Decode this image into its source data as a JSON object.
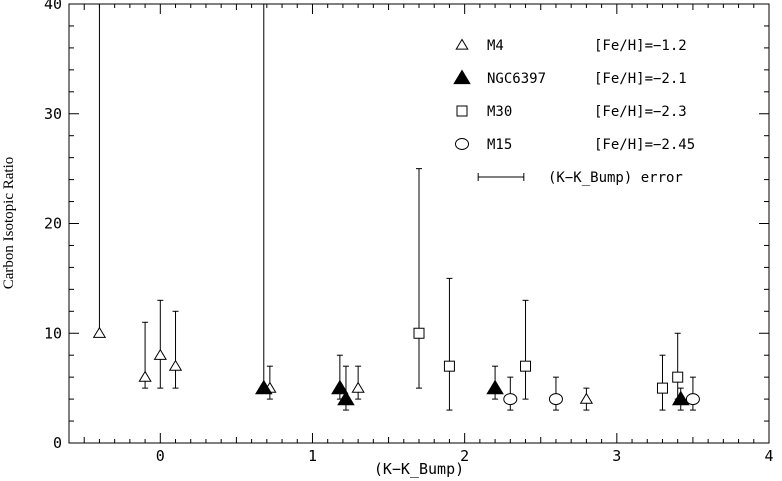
{
  "chart_data": {
    "type": "scatter",
    "xlabel": "(K−K_Bump)",
    "ylabel": "Carbon Isotopic Ratio",
    "xlim": [
      -0.6,
      4.0
    ],
    "ylim": [
      0,
      40
    ],
    "grid": false,
    "legend_position": "top-right",
    "x_ticks": [
      0,
      1,
      2,
      3,
      4
    ],
    "x_tick_labels": [
      "0",
      "1",
      "2",
      "3",
      "4"
    ],
    "y_ticks": [
      0,
      10,
      20,
      30,
      40
    ],
    "y_tick_labels": [
      "0",
      "10",
      "20",
      "30",
      "40"
    ],
    "series": [
      {
        "name": "M4",
        "metallicity": "[Fe/H]=−1.2",
        "marker": "triangle-open",
        "points": [
          {
            "x": -0.4,
            "y": 10,
            "ylo": 10,
            "yhi": 40
          },
          {
            "x": -0.1,
            "y": 6,
            "ylo": 5,
            "yhi": 11
          },
          {
            "x": 0.0,
            "y": 8,
            "ylo": 5,
            "yhi": 13
          },
          {
            "x": 0.1,
            "y": 7,
            "ylo": 5,
            "yhi": 12
          },
          {
            "x": 0.72,
            "y": 5,
            "ylo": 4,
            "yhi": 7
          },
          {
            "x": 1.3,
            "y": 5,
            "ylo": 4,
            "yhi": 7
          },
          {
            "x": 2.8,
            "y": 4,
            "ylo": 3,
            "yhi": 5
          }
        ]
      },
      {
        "name": "NGC6397",
        "metallicity": "[Fe/H]=−2.1",
        "marker": "triangle-filled",
        "points": [
          {
            "x": 0.68,
            "y": 5,
            "ylo": 5,
            "yhi": 40
          },
          {
            "x": 1.18,
            "y": 5,
            "ylo": 4,
            "yhi": 8
          },
          {
            "x": 1.22,
            "y": 4,
            "ylo": 3,
            "yhi": 7
          },
          {
            "x": 2.2,
            "y": 5,
            "ylo": 4,
            "yhi": 7
          },
          {
            "x": 3.42,
            "y": 4,
            "ylo": 3,
            "yhi": 5
          }
        ]
      },
      {
        "name": "M30",
        "metallicity": "[Fe/H]=−2.3",
        "marker": "square-open",
        "points": [
          {
            "x": 1.7,
            "y": 10,
            "ylo": 5,
            "yhi": 25
          },
          {
            "x": 1.9,
            "y": 7,
            "ylo": 3,
            "yhi": 15
          },
          {
            "x": 2.4,
            "y": 7,
            "ylo": 4,
            "yhi": 13
          },
          {
            "x": 3.3,
            "y": 5,
            "ylo": 3,
            "yhi": 8
          },
          {
            "x": 3.4,
            "y": 6,
            "ylo": 4,
            "yhi": 10
          }
        ]
      },
      {
        "name": "M15",
        "metallicity": "[Fe/H]=−2.45",
        "marker": "circle-open",
        "points": [
          {
            "x": 2.3,
            "y": 4,
            "ylo": 3,
            "yhi": 6
          },
          {
            "x": 2.6,
            "y": 4,
            "ylo": 3,
            "yhi": 6
          },
          {
            "x": 3.5,
            "y": 4,
            "ylo": 3,
            "yhi": 6
          }
        ]
      }
    ],
    "error_legend": {
      "label": "(K−K_Bump) error",
      "x_error_width": 0.3
    }
  }
}
